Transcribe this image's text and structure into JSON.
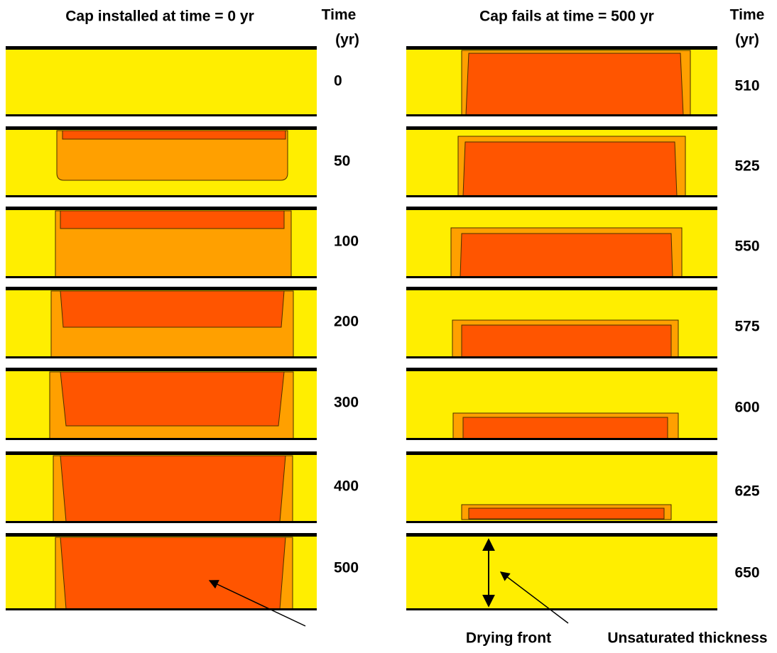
{
  "left": {
    "title": "Cap installed at time = 0 yr",
    "time_header": "Time",
    "time_unit": "(yr)",
    "times": [
      0,
      50,
      100,
      200,
      300,
      400,
      500
    ]
  },
  "right": {
    "title": "Cap fails at time = 500 yr",
    "time_header": "Time",
    "time_unit": "(yr)",
    "times": [
      510,
      525,
      550,
      575,
      600,
      625,
      650
    ]
  },
  "annotations": {
    "drying_front": "Drying front",
    "unsaturated_thickness": "Unsaturated thickness"
  }
}
